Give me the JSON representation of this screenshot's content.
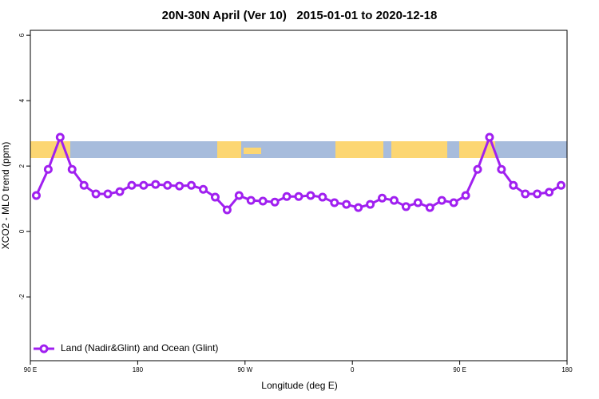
{
  "chart_data": {
    "type": "line",
    "title": "20N-30N April (Ver 10)   2015-01-01 to 2020-12-18",
    "x_label": "Longitude (deg E)",
    "y_label": "XCO2 - MLO trend (ppm)",
    "x": [
      95,
      105,
      115,
      125,
      135,
      145,
      155,
      165,
      175,
      185,
      195,
      205,
      215,
      225,
      235,
      245,
      255,
      265,
      275,
      285,
      295,
      305,
      315,
      325,
      335,
      345,
      355,
      365,
      375,
      385,
      395,
      405,
      415,
      425,
      435,
      445,
      455,
      465,
      475,
      485,
      495,
      505,
      515,
      525,
      535
    ],
    "series": [
      {
        "name": "Land (Nadir&Glint) and Ocean (Glint)",
        "color": "#a020f0",
        "values": [
          1.1,
          1.9,
          2.88,
          1.9,
          1.41,
          1.15,
          1.15,
          1.22,
          1.41,
          1.41,
          1.44,
          1.41,
          1.39,
          1.41,
          1.29,
          1.05,
          0.66,
          1.1,
          0.95,
          0.93,
          0.9,
          1.07,
          1.07,
          1.1,
          1.05,
          0.88,
          0.83,
          0.73,
          0.83,
          1.02,
          0.95,
          0.76,
          0.88,
          0.73,
          0.95,
          0.88,
          1.1,
          1.9,
          2.88,
          1.9,
          1.41,
          1.15,
          1.15,
          1.2,
          1.41
        ]
      }
    ],
    "xlim": [
      90,
      540
    ],
    "xticks": [
      {
        "value": 90,
        "label": "90 E"
      },
      180,
      {
        "value": 270,
        "label": "90 W"
      },
      {
        "value": 360,
        "label": "0"
      },
      {
        "value": 450,
        "label": "90 E"
      },
      {
        "value": 540,
        "label": "180"
      }
    ],
    "ylim": [
      -3.95,
      6.15
    ],
    "yticks": [
      -2,
      0,
      2,
      4,
      6
    ],
    "legend": "bottom-left"
  }
}
